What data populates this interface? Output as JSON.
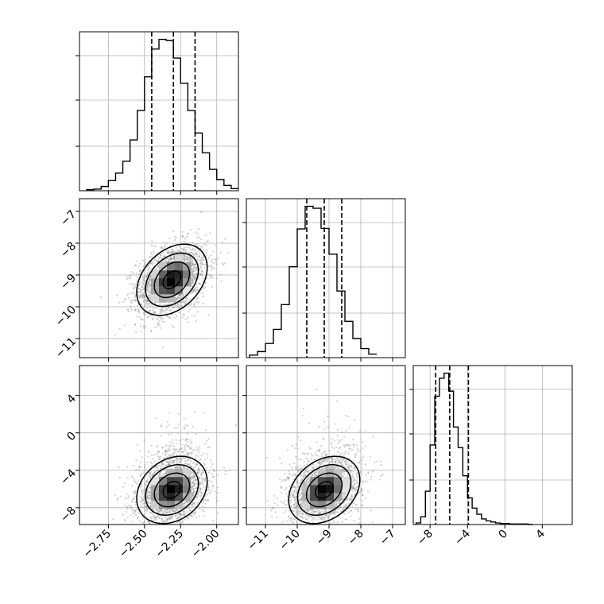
{
  "chart_data": {
    "type": "corner",
    "grid": true,
    "parameters": [
      {
        "range": [
          -2.95,
          -1.85
        ],
        "ticks": [
          -2.75,
          -2.5,
          -2.25,
          -2.0
        ],
        "tick_labels": [
          "−2.75",
          "−2.50",
          "−2.25",
          "−2.00"
        ]
      },
      {
        "range": [
          -11.6,
          -6.6
        ],
        "ticks": [
          -11,
          -10,
          -9,
          -8,
          -7
        ],
        "tick_labels": [
          "−11",
          "−10",
          "−9",
          "−8",
          "−7"
        ]
      },
      {
        "range": [
          -9.8,
          7.2
        ],
        "ticks": [
          -8,
          -4,
          0,
          4
        ],
        "tick_labels": [
          "−8",
          "−4",
          "0",
          "4"
        ]
      }
    ],
    "histograms": [
      {
        "bin_edges": [
          -2.9,
          -2.85,
          -2.8,
          -2.75,
          -2.7,
          -2.65,
          -2.6,
          -2.55,
          -2.5,
          -2.45,
          -2.4,
          -2.35,
          -2.3,
          -2.25,
          -2.2,
          -2.15,
          -2.1,
          -2.05,
          -2,
          -1.95,
          -1.9,
          -1.85
        ],
        "counts": [
          2,
          3,
          8,
          19,
          33,
          55,
          95,
          150,
          213,
          265,
          283,
          281,
          248,
          201,
          150,
          108,
          71,
          40,
          21,
          10,
          4
        ],
        "quantiles": [
          -2.45,
          -2.3,
          -2.15
        ]
      },
      {
        "bin_edges": [
          -11.5,
          -11.25,
          -11,
          -10.75,
          -10.5,
          -10.25,
          -10,
          -9.75,
          -9.5,
          -9.25,
          -9,
          -8.75,
          -8.5,
          -8.25,
          -8,
          -7.75,
          -7.5
        ],
        "counts": [
          5,
          12,
          28,
          56,
          105,
          180,
          255,
          300,
          296,
          256,
          205,
          132,
          72,
          38,
          18,
          7
        ],
        "quantiles": [
          -9.7,
          -9.15,
          -8.6
        ]
      },
      {
        "bin_edges": [
          -9.5,
          -9,
          -8.5,
          -8,
          -7.5,
          -7,
          -6.5,
          -6,
          -5.5,
          -5,
          -4.5,
          -4,
          -3.5,
          -3,
          -2.5,
          -2,
          -1.5,
          -1,
          -0.5,
          0,
          0.5,
          1,
          1.5,
          2,
          2.5,
          3
        ],
        "counts": [
          3,
          15,
          65,
          155,
          250,
          285,
          295,
          260,
          190,
          150,
          95,
          52,
          32,
          20,
          11,
          7,
          5,
          3,
          2,
          2,
          1,
          1,
          1,
          1,
          0
        ],
        "quantiles": [
          -7.4,
          -5.9,
          -3.9
        ]
      }
    ],
    "pairs": [
      {
        "x_param": 0,
        "y_param": 1,
        "mean": [
          -2.31,
          -9.15
        ],
        "sd": [
          0.122,
          0.56
        ],
        "corr": 0.35
      },
      {
        "x_param": 0,
        "y_param": 2,
        "mean": [
          -2.31,
          -6.1
        ],
        "sd": [
          0.122,
          1.8
        ],
        "corr": 0.25
      },
      {
        "x_param": 1,
        "y_param": 2,
        "mean": [
          -9.15,
          -6.1
        ],
        "sd": [
          0.56,
          1.8
        ],
        "corr": 0.3
      }
    ],
    "contour_levels_sigma": [
      0.5,
      1.0,
      1.5,
      2.0
    ]
  }
}
